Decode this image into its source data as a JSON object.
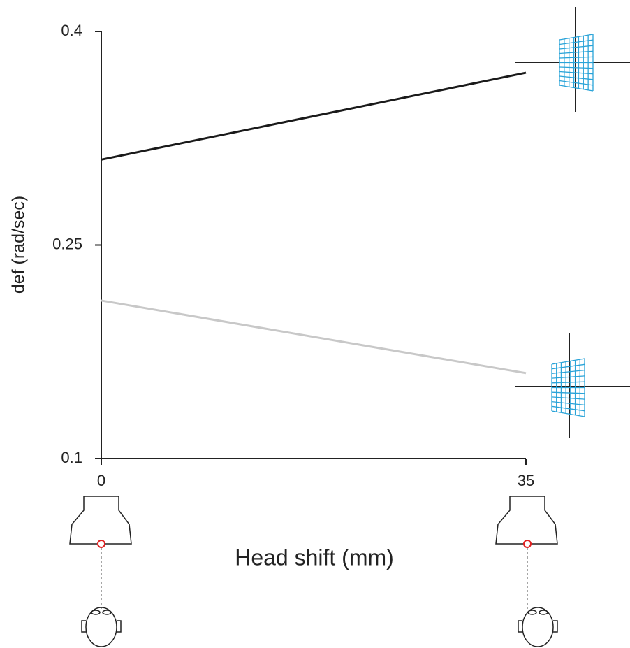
{
  "chart_data": {
    "type": "line",
    "x_label": "Head shift (mm)",
    "y_label": "def (rad/sec)",
    "x": [
      0,
      35
    ],
    "series": [
      {
        "color": "#1a1a1a",
        "values": [
          0.31,
          0.371
        ]
      },
      {
        "color": "#c8c8c8",
        "values": [
          0.211,
          0.16
        ]
      }
    ],
    "xlim": [
      0,
      35
    ],
    "xticks": [
      0,
      35
    ],
    "ylim": [
      0.1,
      0.4
    ],
    "yticks": [
      0.1,
      0.25,
      0.4
    ]
  }
}
